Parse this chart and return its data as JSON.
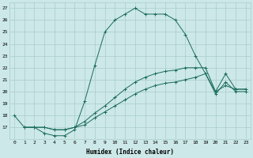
{
  "xlabel": "Humidex (Indice chaleur)",
  "bg_color": "#cce8e8",
  "grid_color": "#aacccc",
  "line_color": "#1a6b5a",
  "xlim": [
    -0.5,
    23.5
  ],
  "ylim": [
    16,
    27.5
  ],
  "xticks": [
    0,
    1,
    2,
    3,
    4,
    5,
    6,
    7,
    8,
    9,
    10,
    11,
    12,
    13,
    14,
    15,
    16,
    17,
    18,
    19,
    20,
    21,
    22,
    23
  ],
  "yticks": [
    17,
    18,
    19,
    20,
    21,
    22,
    23,
    24,
    25,
    26,
    27
  ],
  "series1_x": [
    0,
    1,
    2,
    3,
    4,
    5,
    6,
    7,
    8,
    9,
    10,
    11,
    12,
    13,
    14,
    15,
    16,
    17,
    18,
    19,
    20,
    21,
    22,
    23
  ],
  "series1_y": [
    18,
    17,
    17,
    16.5,
    16.3,
    16.3,
    16.8,
    19.2,
    22.2,
    25.0,
    26.0,
    26.5,
    27.0,
    26.5,
    26.5,
    26.5,
    26.0,
    24.8,
    23.0,
    21.5,
    20.0,
    20.5,
    20.2,
    20.2
  ],
  "series2_x": [
    1,
    2,
    3,
    4,
    5,
    6,
    7,
    8,
    9,
    10,
    11,
    12,
    13,
    14,
    15,
    16,
    17,
    18,
    19,
    20,
    21,
    22,
    23
  ],
  "series2_y": [
    17,
    17,
    17,
    16.8,
    16.8,
    17.0,
    17.5,
    18.2,
    18.8,
    19.5,
    20.2,
    20.8,
    21.2,
    21.5,
    21.7,
    21.8,
    22.0,
    22.0,
    22.0,
    20.0,
    21.5,
    20.2,
    20.2
  ],
  "series3_x": [
    1,
    2,
    3,
    4,
    5,
    6,
    7,
    8,
    9,
    10,
    11,
    12,
    13,
    14,
    15,
    16,
    17,
    18,
    19,
    20,
    21,
    22,
    23
  ],
  "series3_y": [
    17,
    17,
    17,
    16.8,
    16.8,
    17.0,
    17.2,
    17.8,
    18.3,
    18.8,
    19.3,
    19.8,
    20.2,
    20.5,
    20.7,
    20.8,
    21.0,
    21.2,
    21.5,
    19.8,
    20.8,
    20.0,
    20.0
  ]
}
